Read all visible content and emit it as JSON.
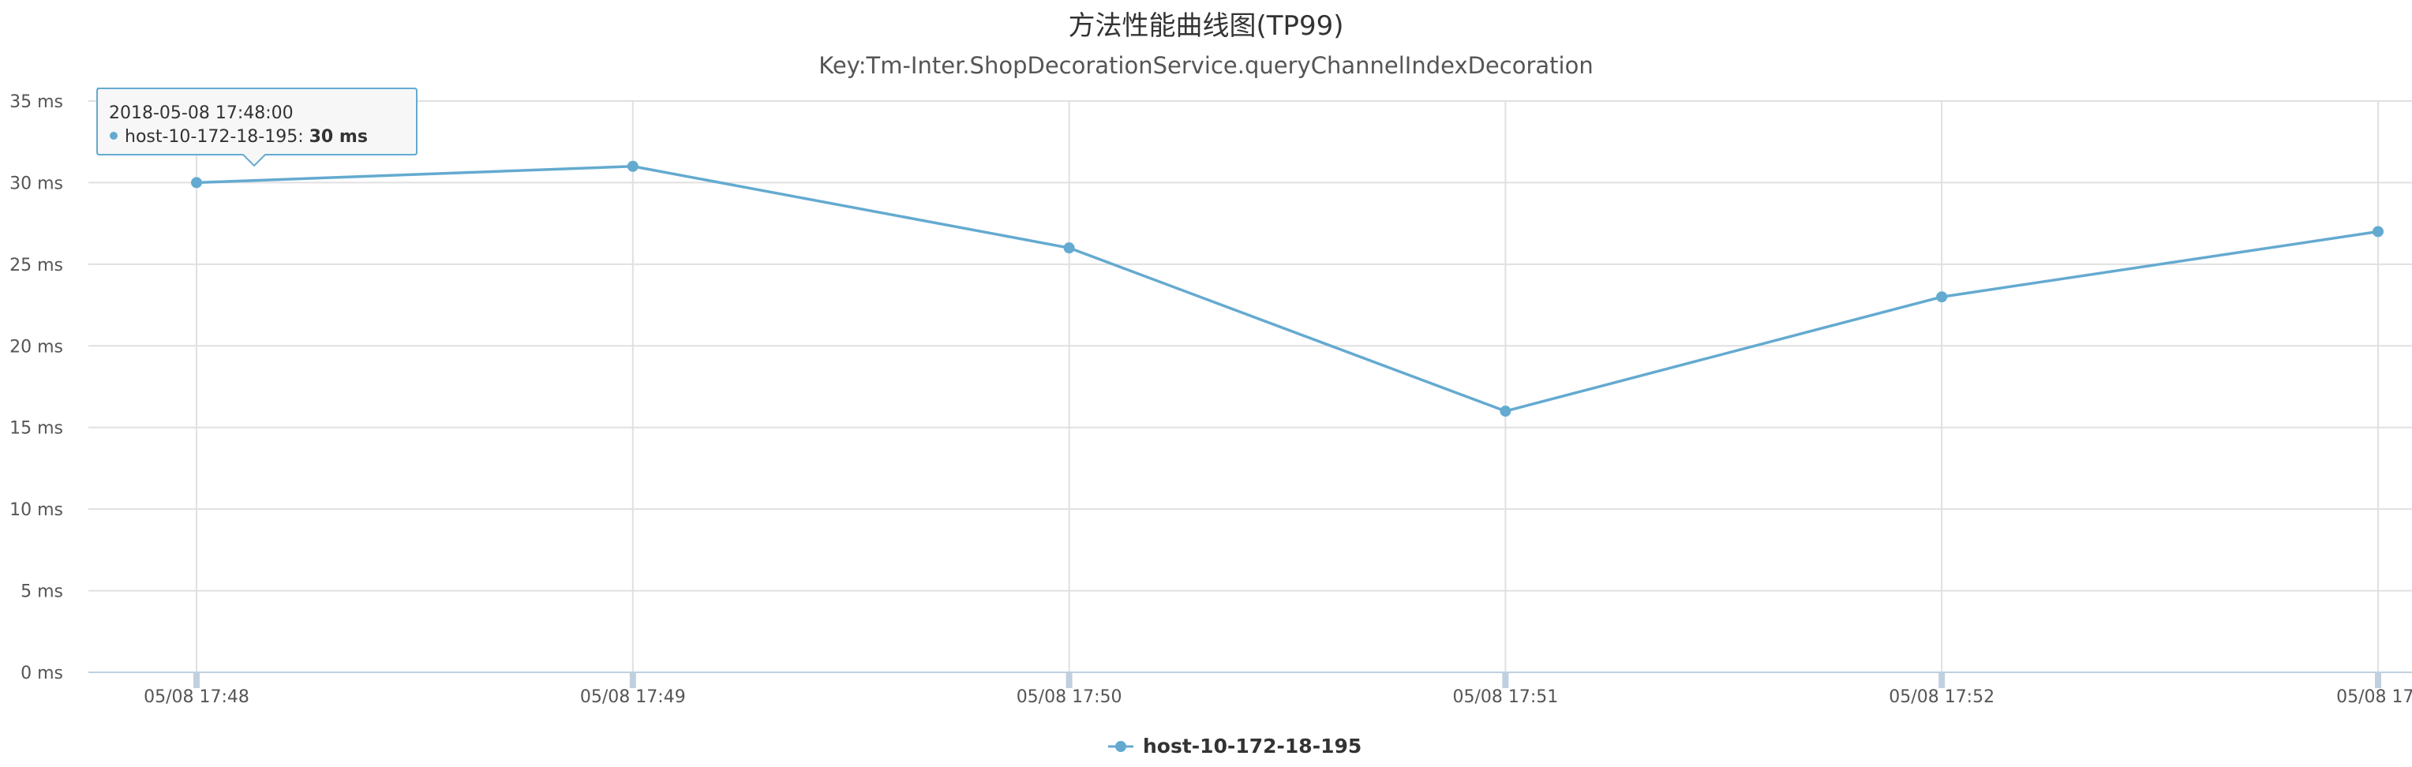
{
  "chart_data": {
    "type": "line",
    "title": "方法性能曲线图(TP99)",
    "subtitle": "Key:Tm-Inter.ShopDecorationService.queryChannelIndexDecoration",
    "xlabel": "",
    "ylabel": "",
    "categories": [
      "05/08 17:48",
      "05/08 17:49",
      "05/08 17:50",
      "05/08 17:51",
      "05/08 17:52",
      "05/08 17:"
    ],
    "series": [
      {
        "name": "host-10-172-18-195",
        "values": [
          30,
          31,
          26,
          16,
          23,
          27
        ]
      }
    ],
    "y_ticks": [
      "0 ms",
      "5 ms",
      "10 ms",
      "15 ms",
      "20 ms",
      "25 ms",
      "30 ms",
      "35 ms"
    ],
    "ylim": [
      0,
      35
    ],
    "grid": true,
    "legend_position": "bottom-center",
    "colors": {
      "series": "#64aad0",
      "grid": "#e0e0e0",
      "axis": "#c0d0e0"
    },
    "tooltip": {
      "header": "2018-05-08 17:48:00",
      "series_name": "host-10-172-18-195",
      "separator": ": ",
      "value_text": "30 ms"
    }
  }
}
